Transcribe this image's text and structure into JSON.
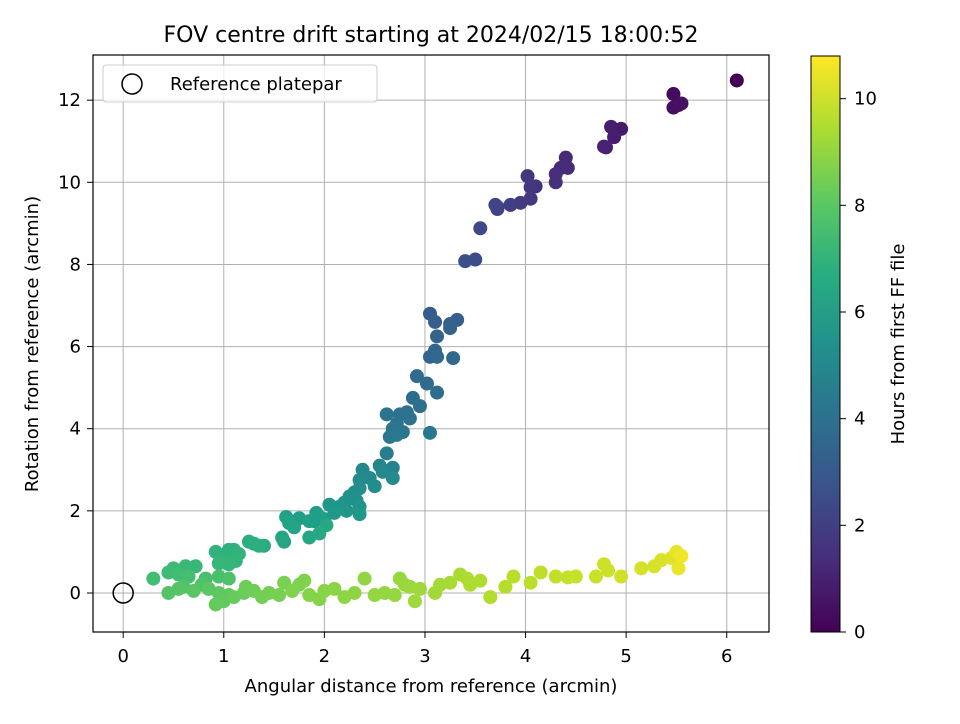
{
  "chart_data": {
    "type": "scatter",
    "title": "FOV centre drift starting at 2024/02/15 18:00:52",
    "xlabel": "Angular distance from reference (arcmin)",
    "ylabel": "Rotation from reference (arcmin)",
    "xlim": [
      -0.3,
      6.42
    ],
    "ylim": [
      -0.95,
      13.1
    ],
    "x_ticks": [
      0,
      1,
      2,
      3,
      4,
      5,
      6
    ],
    "y_ticks": [
      0,
      2,
      4,
      6,
      8,
      10,
      12
    ],
    "x_tick_labels": [
      "0",
      "1",
      "2",
      "3",
      "4",
      "5",
      "6"
    ],
    "y_tick_labels": [
      "0",
      "2",
      "4",
      "6",
      "8",
      "10",
      "12"
    ],
    "grid": true,
    "legend": {
      "position": "top-left",
      "entries": [
        "Reference platepar"
      ]
    },
    "reference_point": {
      "x": 0,
      "y": 0
    },
    "colorbar": {
      "label": "Hours from first FF file",
      "colormap": "viridis",
      "range": [
        0,
        10.8
      ],
      "ticks": [
        0,
        2,
        4,
        6,
        8,
        10
      ],
      "tick_labels": [
        "0",
        "2",
        "4",
        "6",
        "8",
        "10"
      ]
    },
    "series": [
      {
        "points": [
          [
            6.1,
            12.48,
            0.0
          ],
          [
            5.47,
            12.15,
            0.3
          ],
          [
            5.47,
            11.82,
            0.4
          ],
          [
            5.52,
            11.88,
            0.45
          ],
          [
            5.55,
            11.92,
            0.5
          ],
          [
            4.95,
            11.3,
            0.8
          ],
          [
            4.88,
            11.1,
            0.9
          ],
          [
            4.85,
            11.35,
            0.85
          ],
          [
            4.8,
            10.85,
            1.0
          ],
          [
            4.78,
            10.87,
            1.05
          ],
          [
            4.4,
            10.6,
            1.3
          ],
          [
            4.42,
            10.35,
            1.35
          ],
          [
            4.35,
            10.35,
            1.4
          ],
          [
            4.3,
            10.2,
            1.45
          ],
          [
            4.3,
            10.0,
            1.5
          ],
          [
            4.1,
            9.9,
            1.6
          ],
          [
            4.02,
            10.15,
            1.7
          ],
          [
            4.05,
            9.88,
            1.75
          ],
          [
            4.05,
            9.6,
            1.8
          ],
          [
            3.95,
            9.5,
            1.9
          ],
          [
            3.85,
            9.45,
            2.0
          ],
          [
            3.72,
            9.4,
            2.1
          ],
          [
            3.72,
            9.35,
            2.15
          ],
          [
            3.7,
            9.45,
            2.2
          ],
          [
            3.55,
            8.88,
            2.4
          ],
          [
            3.5,
            8.12,
            2.5
          ],
          [
            3.4,
            8.08,
            2.6
          ],
          [
            3.05,
            6.8,
            3.1
          ],
          [
            3.1,
            6.6,
            3.2
          ],
          [
            3.32,
            6.65,
            3.25
          ],
          [
            3.25,
            6.55,
            3.3
          ],
          [
            3.25,
            6.45,
            3.35
          ],
          [
            3.12,
            6.25,
            3.4
          ],
          [
            3.1,
            5.9,
            3.45
          ],
          [
            3.05,
            5.75,
            3.5
          ],
          [
            3.12,
            5.75,
            3.55
          ],
          [
            3.28,
            5.72,
            3.6
          ],
          [
            2.92,
            5.28,
            3.7
          ],
          [
            3.02,
            5.1,
            3.75
          ],
          [
            3.12,
            4.88,
            3.8
          ],
          [
            2.88,
            4.75,
            3.85
          ],
          [
            2.95,
            4.55,
            3.9
          ],
          [
            2.82,
            4.4,
            3.95
          ],
          [
            2.75,
            4.35,
            4.0
          ],
          [
            2.85,
            4.25,
            4.05
          ],
          [
            2.62,
            4.35,
            4.1
          ],
          [
            2.72,
            4.12,
            4.15
          ],
          [
            2.68,
            4.0,
            4.2
          ],
          [
            2.78,
            3.92,
            4.25
          ],
          [
            2.65,
            3.8,
            4.3
          ],
          [
            3.05,
            3.9,
            4.35
          ],
          [
            2.72,
            3.85,
            4.4
          ],
          [
            2.62,
            3.4,
            4.6
          ],
          [
            2.68,
            3.05,
            4.8
          ],
          [
            2.55,
            3.1,
            4.9
          ],
          [
            2.38,
            3.0,
            5.0
          ],
          [
            2.58,
            2.95,
            5.05
          ],
          [
            2.45,
            2.8,
            5.1
          ],
          [
            2.68,
            2.8,
            5.15
          ],
          [
            2.35,
            2.75,
            5.2
          ],
          [
            2.5,
            2.6,
            5.25
          ],
          [
            2.35,
            2.55,
            5.3
          ],
          [
            2.3,
            2.45,
            5.35
          ],
          [
            2.25,
            2.35,
            5.4
          ],
          [
            2.32,
            2.25,
            5.45
          ],
          [
            2.2,
            2.2,
            5.5
          ],
          [
            2.35,
            2.1,
            5.55
          ],
          [
            2.15,
            2.1,
            5.6
          ],
          [
            2.05,
            2.15,
            5.65
          ],
          [
            2.22,
            2.0,
            5.7
          ],
          [
            2.1,
            1.95,
            5.75
          ],
          [
            2.35,
            1.92,
            5.8
          ],
          [
            2.0,
            1.8,
            5.85
          ],
          [
            1.92,
            1.95,
            5.9
          ],
          [
            1.9,
            1.75,
            5.95
          ],
          [
            1.95,
            1.85,
            6.0
          ],
          [
            1.75,
            1.82,
            6.05
          ],
          [
            1.85,
            1.75,
            6.1
          ],
          [
            1.62,
            1.85,
            6.15
          ],
          [
            1.65,
            1.7,
            6.2
          ],
          [
            1.7,
            1.6,
            6.25
          ],
          [
            1.58,
            1.35,
            6.3
          ],
          [
            1.6,
            1.25,
            6.35
          ],
          [
            1.85,
            1.35,
            6.4
          ],
          [
            1.95,
            1.45,
            6.45
          ],
          [
            2.02,
            1.65,
            6.5
          ],
          [
            1.4,
            1.15,
            6.6
          ],
          [
            1.3,
            1.2,
            6.65
          ],
          [
            1.25,
            1.25,
            6.7
          ],
          [
            1.35,
            1.15,
            6.75
          ],
          [
            1.1,
            1.05,
            6.8
          ],
          [
            1.05,
            1.05,
            6.85
          ],
          [
            0.92,
            1.0,
            6.9
          ],
          [
            1.02,
            0.9,
            6.95
          ],
          [
            1.15,
            0.95,
            7.0
          ],
          [
            0.98,
            0.8,
            7.05
          ],
          [
            1.12,
            0.78,
            7.1
          ],
          [
            1.05,
            0.7,
            7.15
          ],
          [
            0.95,
            0.72,
            7.2
          ],
          [
            0.72,
            0.65,
            7.25
          ],
          [
            0.62,
            0.65,
            7.3
          ],
          [
            0.5,
            0.6,
            7.35
          ],
          [
            0.45,
            0.5,
            7.4
          ],
          [
            0.3,
            0.35,
            7.45
          ],
          [
            0.55,
            0.45,
            7.5
          ],
          [
            0.65,
            0.4,
            7.55
          ],
          [
            0.82,
            0.35,
            7.6
          ],
          [
            0.95,
            0.4,
            7.65
          ],
          [
            1.05,
            0.35,
            7.7
          ],
          [
            0.78,
            0.2,
            7.75
          ],
          [
            0.6,
            0.15,
            7.8
          ],
          [
            0.45,
            0.0,
            7.85
          ],
          [
            0.55,
            0.1,
            7.9
          ],
          [
            0.7,
            0.05,
            7.95
          ],
          [
            0.85,
            0.1,
            8.0
          ],
          [
            0.95,
            0.0,
            8.05
          ],
          [
            1.05,
            -0.05,
            8.1
          ],
          [
            1.0,
            -0.2,
            8.15
          ],
          [
            0.92,
            -0.28,
            8.2
          ],
          [
            1.1,
            -0.1,
            8.25
          ],
          [
            1.2,
            0.0,
            8.3
          ],
          [
            1.22,
            0.15,
            8.35
          ],
          [
            1.3,
            0.05,
            8.4
          ],
          [
            1.38,
            -0.1,
            8.45
          ],
          [
            1.45,
            0.0,
            8.5
          ],
          [
            1.55,
            -0.05,
            8.55
          ],
          [
            1.6,
            0.25,
            8.6
          ],
          [
            1.75,
            0.2,
            8.65
          ],
          [
            1.8,
            0.3,
            8.7
          ],
          [
            1.68,
            0.05,
            8.72
          ],
          [
            1.85,
            -0.05,
            8.75
          ],
          [
            1.95,
            -0.15,
            8.8
          ],
          [
            2.0,
            0.05,
            8.85
          ],
          [
            2.1,
            0.1,
            8.88
          ],
          [
            2.2,
            -0.1,
            8.9
          ],
          [
            2.3,
            0.0,
            8.95
          ],
          [
            2.4,
            0.35,
            9.0
          ],
          [
            2.5,
            -0.05,
            9.02
          ],
          [
            2.6,
            0.0,
            9.05
          ],
          [
            2.7,
            -0.05,
            9.08
          ],
          [
            2.75,
            0.35,
            9.1
          ],
          [
            2.8,
            0.2,
            9.12
          ],
          [
            2.85,
            0.15,
            9.15
          ],
          [
            2.9,
            -0.2,
            9.2
          ],
          [
            2.95,
            0.1,
            9.22
          ],
          [
            3.1,
            0.0,
            9.25
          ],
          [
            3.15,
            0.2,
            9.3
          ],
          [
            3.25,
            0.25,
            9.35
          ],
          [
            3.35,
            0.45,
            9.4
          ],
          [
            3.42,
            0.35,
            9.45
          ],
          [
            3.45,
            0.2,
            9.48
          ],
          [
            3.55,
            0.3,
            9.5
          ],
          [
            3.65,
            -0.1,
            9.55
          ],
          [
            3.8,
            0.15,
            9.6
          ],
          [
            3.88,
            0.4,
            9.65
          ],
          [
            4.05,
            0.25,
            9.7
          ],
          [
            4.15,
            0.5,
            9.75
          ],
          [
            4.3,
            0.4,
            9.8
          ],
          [
            4.42,
            0.38,
            9.85
          ],
          [
            4.5,
            0.4,
            9.9
          ],
          [
            4.7,
            0.4,
            9.95
          ],
          [
            4.78,
            0.7,
            10.0
          ],
          [
            4.82,
            0.55,
            10.02
          ],
          [
            4.95,
            0.4,
            10.05
          ],
          [
            5.15,
            0.6,
            10.1
          ],
          [
            5.28,
            0.65,
            10.15
          ],
          [
            5.35,
            0.8,
            10.2
          ],
          [
            5.45,
            0.85,
            10.3
          ],
          [
            5.5,
            1.0,
            10.4
          ],
          [
            5.52,
            0.6,
            10.45
          ],
          [
            5.55,
            0.9,
            10.6
          ]
        ]
      }
    ]
  }
}
